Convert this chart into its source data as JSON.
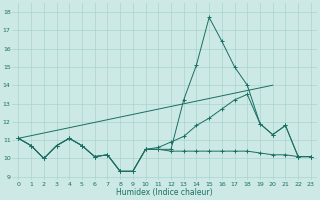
{
  "xlabel": "Humidex (Indice chaleur)",
  "xlim": [
    -0.5,
    23.5
  ],
  "ylim": [
    8.8,
    18.5
  ],
  "yticks": [
    9,
    10,
    11,
    12,
    13,
    14,
    15,
    16,
    17,
    18
  ],
  "xticks": [
    0,
    1,
    2,
    3,
    4,
    5,
    6,
    7,
    8,
    9,
    10,
    11,
    12,
    13,
    14,
    15,
    16,
    17,
    18,
    19,
    20,
    21,
    22,
    23
  ],
  "bg_color": "#cce9e5",
  "grid_color": "#aad4cf",
  "line_color": "#1a6e62",
  "series": [
    {
      "x": [
        0,
        1,
        2,
        3,
        4,
        5,
        6,
        7,
        8,
        9,
        10,
        11,
        12,
        13,
        14,
        15,
        16,
        17,
        18,
        19,
        20,
        21,
        22,
        23
      ],
      "y": [
        11.1,
        10.7,
        10.0,
        10.7,
        11.1,
        10.7,
        10.1,
        10.2,
        9.3,
        9.3,
        10.5,
        10.5,
        10.5,
        13.2,
        15.1,
        17.7,
        16.4,
        15.0,
        14.0,
        11.9,
        11.3,
        11.8,
        10.1,
        10.1
      ],
      "marker": true
    },
    {
      "x": [
        0,
        1,
        2,
        3,
        4,
        5,
        6,
        7,
        8,
        9,
        10,
        11,
        12,
        13,
        14,
        15,
        16,
        17,
        18,
        19,
        20,
        21,
        22,
        23
      ],
      "y": [
        11.1,
        10.7,
        10.0,
        10.7,
        11.1,
        10.7,
        10.1,
        10.2,
        9.3,
        9.3,
        10.5,
        10.5,
        10.4,
        10.4,
        10.4,
        10.4,
        10.4,
        10.4,
        10.4,
        10.3,
        10.2,
        10.2,
        10.1,
        10.1
      ],
      "marker": true
    },
    {
      "x": [
        0,
        20
      ],
      "y": [
        11.1,
        14.0
      ],
      "marker": false
    },
    {
      "x": [
        0,
        1,
        2,
        3,
        4,
        5,
        6,
        7,
        8,
        9,
        10,
        11,
        12,
        13,
        14,
        15,
        16,
        17,
        18,
        19,
        20,
        21,
        22,
        23
      ],
      "y": [
        11.1,
        10.7,
        10.0,
        10.7,
        11.1,
        10.7,
        10.1,
        10.2,
        9.3,
        9.3,
        10.5,
        10.6,
        10.9,
        11.2,
        11.8,
        12.2,
        12.7,
        13.2,
        13.5,
        11.9,
        11.3,
        11.8,
        10.1,
        10.1
      ],
      "marker": true
    }
  ]
}
